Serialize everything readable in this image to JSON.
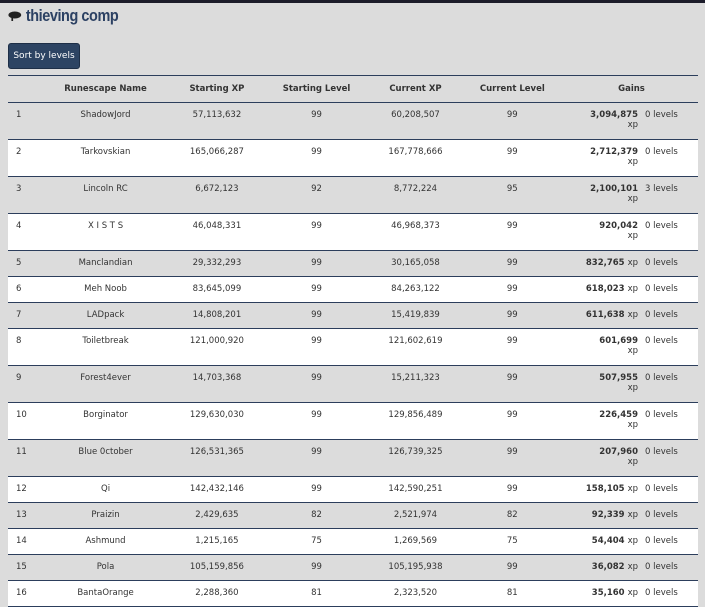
{
  "title": "thieving comp",
  "sort_button": "Sort by levels",
  "columns": [
    "Runescape Name",
    "Starting XP",
    "Starting Level",
    "Current XP",
    "Current Level",
    "Gains"
  ],
  "rows": [
    [
      "1",
      "ShadowJord",
      "57,113,632",
      "99",
      "60,208,507",
      "99",
      "3,094,875",
      "xp",
      "0 levels"
    ],
    [
      "2",
      "Tarkovskian",
      "165,066,287",
      "99",
      "167,778,666",
      "99",
      "2,712,379",
      "xp",
      "0 levels"
    ],
    [
      "3",
      "Lincoln RC",
      "6,672,123",
      "92",
      "8,772,224",
      "95",
      "2,100,101",
      "xp",
      "3 levels"
    ],
    [
      "4",
      "X I S T S",
      "46,048,331",
      "99",
      "46,968,373",
      "99",
      "920,042",
      "xp",
      "0 levels"
    ],
    [
      "5",
      "Manclandian",
      "29,332,293",
      "99",
      "30,165,058",
      "99",
      "832,765",
      "xp",
      "0 levels"
    ],
    [
      "6",
      "Meh Noob",
      "83,645,099",
      "99",
      "84,263,122",
      "99",
      "618,023",
      "xp",
      "0 levels"
    ],
    [
      "7",
      "LADpack",
      "14,808,201",
      "99",
      "15,419,839",
      "99",
      "611,638",
      "xp",
      "0 levels"
    ],
    [
      "8",
      "Toiletbreak",
      "121,000,920",
      "99",
      "121,602,619",
      "99",
      "601,699",
      "xp",
      "0 levels"
    ],
    [
      "9",
      "Forest4ever",
      "14,703,368",
      "99",
      "15,211,323",
      "99",
      "507,955",
      "xp",
      "0 levels"
    ],
    [
      "10",
      "Borginator",
      "129,630,030",
      "99",
      "129,856,489",
      "99",
      "226,459",
      "xp",
      "0 levels"
    ],
    [
      "11",
      "Blue 0ctober",
      "126,531,365",
      "99",
      "126,739,325",
      "99",
      "207,960",
      "xp",
      "0 levels"
    ],
    [
      "12",
      "Qi",
      "142,432,146",
      "99",
      "142,590,251",
      "99",
      "158,105",
      "xp",
      "0 levels"
    ],
    [
      "13",
      "Praizin",
      "2,429,635",
      "82",
      "2,521,974",
      "82",
      "92,339",
      "xp",
      "0 levels"
    ],
    [
      "14",
      "Ashmund",
      "1,215,165",
      "75",
      "1,269,569",
      "75",
      "54,404",
      "xp",
      "0 levels"
    ],
    [
      "15",
      "Pola",
      "105,159,856",
      "99",
      "105,195,938",
      "99",
      "36,082",
      "xp",
      "0 levels"
    ],
    [
      "16",
      "BantaOrange",
      "2,288,360",
      "81",
      "2,323,520",
      "81",
      "35,160",
      "xp",
      "0 levels"
    ]
  ]
}
